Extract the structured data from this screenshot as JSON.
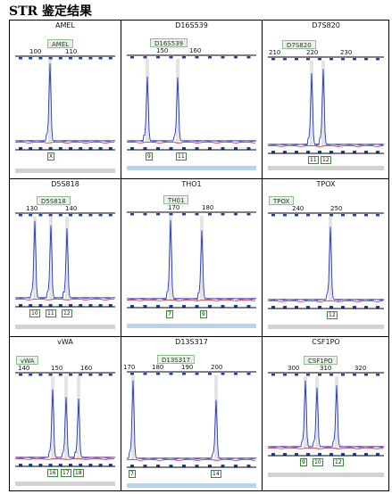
{
  "page": {
    "title": "STR 鉴定结果"
  },
  "cells": [
    {
      "id": "amel",
      "title": "AMEL",
      "locus_label": "AMEL",
      "ticks": [
        "100",
        "110"
      ],
      "alleles": [
        "X"
      ]
    },
    {
      "id": "d16s539",
      "title": "D16S539",
      "locus_label": "D16S539",
      "ticks": [
        "150",
        "160"
      ],
      "alleles": [
        "9",
        "11"
      ]
    },
    {
      "id": "d7s820",
      "title": "D7S820",
      "locus_label": "D7S820",
      "ticks": [
        "210",
        "220",
        "230"
      ],
      "alleles": [
        "11",
        "12"
      ]
    },
    {
      "id": "d5s818",
      "title": "D5S818",
      "locus_label": "D5S818",
      "ticks": [
        "130",
        "140"
      ],
      "alleles": [
        "10",
        "11",
        "12"
      ]
    },
    {
      "id": "tho1",
      "title": "THO1",
      "locus_label": "TH01",
      "ticks": [
        "170",
        "180"
      ],
      "alleles": [
        "7",
        "9"
      ]
    },
    {
      "id": "tpox",
      "title": "TPOX",
      "locus_label": "TPOX",
      "ticks": [
        "240",
        "250"
      ],
      "alleles": [
        "12"
      ]
    },
    {
      "id": "vwa",
      "title": "vWA",
      "locus_label": "vWA",
      "ticks": [
        "140",
        "150",
        "160"
      ],
      "alleles": [
        "16",
        "17",
        "18"
      ]
    },
    {
      "id": "d13s317",
      "title": "D13S317",
      "locus_label": "D13S317",
      "ticks": [
        "170",
        "180",
        "190",
        "200"
      ],
      "alleles": [
        "7",
        "14"
      ]
    },
    {
      "id": "csf1po",
      "title": "CSF1PO",
      "locus_label": "CSF1PO",
      "ticks": [
        "300",
        "310",
        "320"
      ],
      "alleles": [
        "9",
        "10",
        "12"
      ]
    }
  ],
  "colors": {
    "peak": "#2233cc",
    "baseline": "#dd2222",
    "bin_marker": "#1f3fb0",
    "allele_border": "#3a8a3a",
    "label_bg": "#e5f2e5",
    "bin_line": "#dddddd"
  }
}
